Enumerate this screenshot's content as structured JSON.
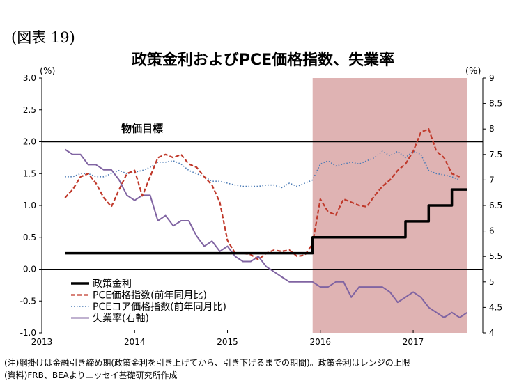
{
  "figure_label": "(図表 19)",
  "chart_data": {
    "type": "line",
    "title": "政策金利およびPCE価格指数、失業率",
    "left_axis_label": "(%)",
    "right_axis_label": "(%)",
    "left_ylim": [
      -1.0,
      3.0
    ],
    "left_ticks": [
      "3.0",
      "2.5",
      "2.0",
      "1.5",
      "1.0",
      "0.5",
      "0.0",
      "-0.5",
      "-1.0"
    ],
    "right_ylim": [
      4,
      9
    ],
    "right_ticks": [
      "9",
      "8.5",
      "8",
      "7.5",
      "7",
      "6.5",
      "6",
      "5.5",
      "5",
      "4.5",
      "4"
    ],
    "x_ticks": [
      "2013",
      "2014",
      "2015",
      "2016",
      "2017"
    ],
    "x_range": [
      2013.0,
      2017.75
    ],
    "shaded_period": [
      2015.917,
      2017.583
    ],
    "shading_color": "#dfb3b3",
    "reference_line": {
      "label": "物価目標",
      "value": 2.0
    },
    "series": [
      {
        "name": "政策金利",
        "axis": "left",
        "color": "#000000",
        "style": "solid",
        "step": true,
        "points": [
          [
            2013.25,
            0.25
          ],
          [
            2015.917,
            0.25
          ],
          [
            2015.917,
            0.5
          ],
          [
            2016.917,
            0.5
          ],
          [
            2016.917,
            0.75
          ],
          [
            2017.167,
            0.75
          ],
          [
            2017.167,
            1.0
          ],
          [
            2017.417,
            1.0
          ],
          [
            2017.417,
            1.25
          ],
          [
            2017.583,
            1.25
          ]
        ]
      },
      {
        "name": "PCE価格指数(前年同月比)",
        "axis": "left",
        "color": "#c0392b",
        "style": "dashed",
        "points": [
          [
            2013.25,
            1.12
          ],
          [
            2013.333,
            1.25
          ],
          [
            2013.417,
            1.45
          ],
          [
            2013.5,
            1.5
          ],
          [
            2013.583,
            1.35
          ],
          [
            2013.667,
            1.12
          ],
          [
            2013.75,
            0.98
          ],
          [
            2013.833,
            1.25
          ],
          [
            2013.917,
            1.5
          ],
          [
            2014.0,
            1.55
          ],
          [
            2014.083,
            1.15
          ],
          [
            2014.167,
            1.45
          ],
          [
            2014.25,
            1.75
          ],
          [
            2014.333,
            1.8
          ],
          [
            2014.417,
            1.75
          ],
          [
            2014.5,
            1.8
          ],
          [
            2014.583,
            1.65
          ],
          [
            2014.667,
            1.6
          ],
          [
            2014.75,
            1.45
          ],
          [
            2014.833,
            1.32
          ],
          [
            2014.917,
            1.05
          ],
          [
            2015.0,
            0.45
          ],
          [
            2015.083,
            0.25
          ],
          [
            2015.167,
            0.25
          ],
          [
            2015.25,
            0.23
          ],
          [
            2015.333,
            0.15
          ],
          [
            2015.417,
            0.25
          ],
          [
            2015.5,
            0.3
          ],
          [
            2015.583,
            0.28
          ],
          [
            2015.667,
            0.3
          ],
          [
            2015.75,
            0.2
          ],
          [
            2015.833,
            0.22
          ],
          [
            2015.917,
            0.4
          ],
          [
            2016.0,
            1.1
          ],
          [
            2016.083,
            0.9
          ],
          [
            2016.167,
            0.85
          ],
          [
            2016.25,
            1.1
          ],
          [
            2016.333,
            1.05
          ],
          [
            2016.417,
            1.0
          ],
          [
            2016.5,
            0.98
          ],
          [
            2016.583,
            1.15
          ],
          [
            2016.667,
            1.3
          ],
          [
            2016.75,
            1.4
          ],
          [
            2016.833,
            1.55
          ],
          [
            2016.917,
            1.65
          ],
          [
            2017.0,
            1.85
          ],
          [
            2017.083,
            2.15
          ],
          [
            2017.167,
            2.2
          ],
          [
            2017.25,
            1.85
          ],
          [
            2017.333,
            1.75
          ],
          [
            2017.417,
            1.5
          ],
          [
            2017.5,
            1.45
          ]
        ]
      },
      {
        "name": "PCEコア価格指数(前年同月比)",
        "axis": "left",
        "color": "#4a7ab5",
        "style": "dotted",
        "points": [
          [
            2013.25,
            1.45
          ],
          [
            2013.333,
            1.45
          ],
          [
            2013.417,
            1.5
          ],
          [
            2013.5,
            1.5
          ],
          [
            2013.583,
            1.45
          ],
          [
            2013.667,
            1.45
          ],
          [
            2013.75,
            1.5
          ],
          [
            2013.833,
            1.55
          ],
          [
            2013.917,
            1.5
          ],
          [
            2014.0,
            1.52
          ],
          [
            2014.083,
            1.55
          ],
          [
            2014.167,
            1.6
          ],
          [
            2014.25,
            1.68
          ],
          [
            2014.333,
            1.68
          ],
          [
            2014.417,
            1.7
          ],
          [
            2014.5,
            1.65
          ],
          [
            2014.583,
            1.55
          ],
          [
            2014.667,
            1.5
          ],
          [
            2014.75,
            1.45
          ],
          [
            2014.833,
            1.38
          ],
          [
            2014.917,
            1.38
          ],
          [
            2015.0,
            1.35
          ],
          [
            2015.083,
            1.32
          ],
          [
            2015.167,
            1.3
          ],
          [
            2015.25,
            1.3
          ],
          [
            2015.333,
            1.3
          ],
          [
            2015.417,
            1.32
          ],
          [
            2015.5,
            1.32
          ],
          [
            2015.583,
            1.28
          ],
          [
            2015.667,
            1.35
          ],
          [
            2015.75,
            1.3
          ],
          [
            2015.833,
            1.35
          ],
          [
            2015.917,
            1.4
          ],
          [
            2016.0,
            1.65
          ],
          [
            2016.083,
            1.7
          ],
          [
            2016.167,
            1.62
          ],
          [
            2016.25,
            1.65
          ],
          [
            2016.333,
            1.68
          ],
          [
            2016.417,
            1.65
          ],
          [
            2016.5,
            1.7
          ],
          [
            2016.583,
            1.75
          ],
          [
            2016.667,
            1.85
          ],
          [
            2016.75,
            1.78
          ],
          [
            2016.833,
            1.85
          ],
          [
            2016.917,
            1.75
          ],
          [
            2017.0,
            1.85
          ],
          [
            2017.083,
            1.8
          ],
          [
            2017.167,
            1.55
          ],
          [
            2017.25,
            1.5
          ],
          [
            2017.333,
            1.48
          ],
          [
            2017.417,
            1.45
          ],
          [
            2017.5,
            1.4
          ]
        ]
      },
      {
        "name": "失業率(右軸)",
        "axis": "right",
        "color": "#8064a2",
        "style": "solid",
        "points": [
          [
            2013.25,
            7.6
          ],
          [
            2013.333,
            7.5
          ],
          [
            2013.417,
            7.5
          ],
          [
            2013.5,
            7.3
          ],
          [
            2013.583,
            7.3
          ],
          [
            2013.667,
            7.2
          ],
          [
            2013.75,
            7.2
          ],
          [
            2013.833,
            7.0
          ],
          [
            2013.917,
            6.7
          ],
          [
            2014.0,
            6.6
          ],
          [
            2014.083,
            6.7
          ],
          [
            2014.167,
            6.7
          ],
          [
            2014.25,
            6.2
          ],
          [
            2014.333,
            6.3
          ],
          [
            2014.417,
            6.1
          ],
          [
            2014.5,
            6.2
          ],
          [
            2014.583,
            6.2
          ],
          [
            2014.667,
            5.9
          ],
          [
            2014.75,
            5.7
          ],
          [
            2014.833,
            5.8
          ],
          [
            2014.917,
            5.6
          ],
          [
            2015.0,
            5.7
          ],
          [
            2015.083,
            5.5
          ],
          [
            2015.167,
            5.4
          ],
          [
            2015.25,
            5.4
          ],
          [
            2015.333,
            5.5
          ],
          [
            2015.417,
            5.3
          ],
          [
            2015.5,
            5.2
          ],
          [
            2015.583,
            5.1
          ],
          [
            2015.667,
            5.0
          ],
          [
            2015.75,
            5.0
          ],
          [
            2015.833,
            5.0
          ],
          [
            2015.917,
            5.0
          ],
          [
            2016.0,
            4.9
          ],
          [
            2016.083,
            4.9
          ],
          [
            2016.167,
            5.0
          ],
          [
            2016.25,
            5.0
          ],
          [
            2016.333,
            4.7
          ],
          [
            2016.417,
            4.9
          ],
          [
            2016.5,
            4.9
          ],
          [
            2016.583,
            4.9
          ],
          [
            2016.667,
            4.9
          ],
          [
            2016.75,
            4.8
          ],
          [
            2016.833,
            4.6
          ],
          [
            2016.917,
            4.7
          ],
          [
            2017.0,
            4.8
          ],
          [
            2017.083,
            4.7
          ],
          [
            2017.167,
            4.5
          ],
          [
            2017.25,
            4.4
          ],
          [
            2017.333,
            4.3
          ],
          [
            2017.417,
            4.4
          ],
          [
            2017.5,
            4.3
          ],
          [
            2017.583,
            4.4
          ]
        ]
      }
    ]
  },
  "notes": {
    "line1": "(注)網掛けは金融引き締め期(政策金利を引き上げてから、引き下げるまでの期間)。政策金利はレンジの上限",
    "line2": "(資料)FRB、BEAよりニッセイ基礎研究所作成"
  }
}
